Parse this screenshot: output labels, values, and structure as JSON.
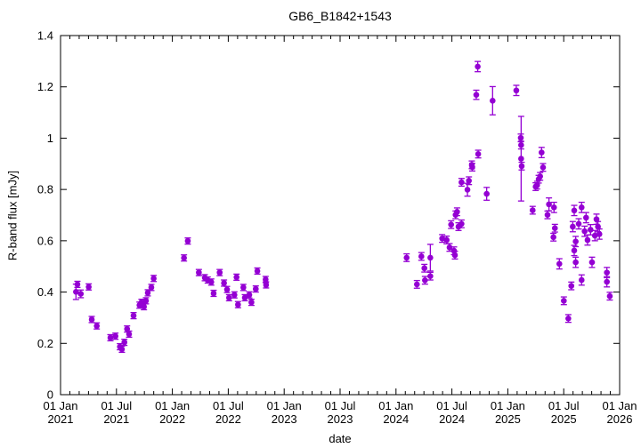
{
  "chart_data": {
    "type": "scatter",
    "title": "GB6_B1842+1543",
    "xlabel": "date",
    "ylabel": "R-band flux [mJy]",
    "legend": "none",
    "grid": false,
    "marker_color": "#9400d3",
    "axis_color": "#000000",
    "background_color": "#ffffff",
    "x_unit": "years since 01 Jan 2021",
    "xlim": [
      0,
      5
    ],
    "ylim": [
      0,
      1.4
    ],
    "x_major_ticks": [
      {
        "t": 0.0,
        "line1": "01 Jan",
        "line2": "2021"
      },
      {
        "t": 0.5,
        "line1": "01 Jul",
        "line2": "2021"
      },
      {
        "t": 1.0,
        "line1": "01 Jan",
        "line2": "2022"
      },
      {
        "t": 1.5,
        "line1": "01 Jul",
        "line2": "2022"
      },
      {
        "t": 2.0,
        "line1": "01 Jan",
        "line2": "2023"
      },
      {
        "t": 2.5,
        "line1": "01 Jul",
        "line2": "2023"
      },
      {
        "t": 3.0,
        "line1": "01 Jan",
        "line2": "2024"
      },
      {
        "t": 3.5,
        "line1": "01 Jul",
        "line2": "2024"
      },
      {
        "t": 4.0,
        "line1": "01 Jan",
        "line2": "2025"
      },
      {
        "t": 4.5,
        "line1": "01 Jul",
        "line2": "2025"
      },
      {
        "t": 5.0,
        "line1": "01 Jan",
        "line2": "2026"
      }
    ],
    "x_minor_tick_step": 0.0833333,
    "y_major_ticks": [
      {
        "v": 0.0,
        "label": "0"
      },
      {
        "v": 0.2,
        "label": "0.2"
      },
      {
        "v": 0.4,
        "label": "0.4"
      },
      {
        "v": 0.6,
        "label": "0.6"
      },
      {
        "v": 0.8,
        "label": "0.8"
      },
      {
        "v": 1.0,
        "label": "1"
      },
      {
        "v": 1.2,
        "label": "1.2"
      },
      {
        "v": 1.4,
        "label": "1.4"
      }
    ],
    "points_format": "[t_years_since_2021, flux_mJy, flux_error_mJy]",
    "points": [
      [
        0.138,
        0.401,
        0.03
      ],
      [
        0.151,
        0.43,
        0.012
      ],
      [
        0.181,
        0.393,
        0.015
      ],
      [
        0.252,
        0.42,
        0.012
      ],
      [
        0.279,
        0.293,
        0.012
      ],
      [
        0.324,
        0.268,
        0.012
      ],
      [
        0.446,
        0.222,
        0.012
      ],
      [
        0.491,
        0.228,
        0.012
      ],
      [
        0.531,
        0.187,
        0.012
      ],
      [
        0.549,
        0.177,
        0.012
      ],
      [
        0.571,
        0.204,
        0.012
      ],
      [
        0.595,
        0.256,
        0.012
      ],
      [
        0.613,
        0.236,
        0.012
      ],
      [
        0.653,
        0.308,
        0.012
      ],
      [
        0.706,
        0.349,
        0.012
      ],
      [
        0.724,
        0.36,
        0.012
      ],
      [
        0.746,
        0.343,
        0.012
      ],
      [
        0.764,
        0.366,
        0.012
      ],
      [
        0.78,
        0.397,
        0.012
      ],
      [
        0.812,
        0.418,
        0.012
      ],
      [
        0.833,
        0.453,
        0.012
      ],
      [
        1.104,
        0.533,
        0.012
      ],
      [
        1.138,
        0.599,
        0.012
      ],
      [
        1.237,
        0.476,
        0.012
      ],
      [
        1.29,
        0.456,
        0.012
      ],
      [
        1.316,
        0.447,
        0.012
      ],
      [
        1.348,
        0.439,
        0.012
      ],
      [
        1.369,
        0.395,
        0.012
      ],
      [
        1.423,
        0.476,
        0.012
      ],
      [
        1.462,
        0.435,
        0.012
      ],
      [
        1.489,
        0.41,
        0.012
      ],
      [
        1.507,
        0.378,
        0.012
      ],
      [
        1.555,
        0.389,
        0.012
      ],
      [
        1.574,
        0.458,
        0.012
      ],
      [
        1.587,
        0.351,
        0.012
      ],
      [
        1.635,
        0.418,
        0.012
      ],
      [
        1.648,
        0.378,
        0.012
      ],
      [
        1.688,
        0.389,
        0.012
      ],
      [
        1.707,
        0.36,
        0.012
      ],
      [
        1.746,
        0.412,
        0.012
      ],
      [
        1.76,
        0.482,
        0.012
      ],
      [
        1.834,
        0.449,
        0.012
      ],
      [
        1.838,
        0.428,
        0.012
      ],
      [
        3.095,
        0.534,
        0.015
      ],
      [
        3.187,
        0.43,
        0.015
      ],
      [
        3.227,
        0.539,
        0.015
      ],
      [
        3.254,
        0.493,
        0.015
      ],
      [
        3.259,
        0.446,
        0.015
      ],
      [
        3.307,
        0.534,
        0.052
      ],
      [
        3.307,
        0.462,
        0.015
      ],
      [
        3.413,
        0.609,
        0.015
      ],
      [
        3.453,
        0.603,
        0.015
      ],
      [
        3.479,
        0.574,
        0.015
      ],
      [
        3.493,
        0.663,
        0.015
      ],
      [
        3.519,
        0.561,
        0.015
      ],
      [
        3.527,
        0.544,
        0.015
      ],
      [
        3.533,
        0.701,
        0.015
      ],
      [
        3.546,
        0.713,
        0.015
      ],
      [
        3.559,
        0.655,
        0.015
      ],
      [
        3.586,
        0.666,
        0.015
      ],
      [
        3.586,
        0.828,
        0.015
      ],
      [
        3.639,
        0.799,
        0.025
      ],
      [
        3.652,
        0.834,
        0.015
      ],
      [
        3.678,
        0.896,
        0.015
      ],
      [
        3.682,
        0.887,
        0.015
      ],
      [
        3.718,
        1.169,
        0.018
      ],
      [
        3.731,
        1.279,
        0.02
      ],
      [
        3.735,
        0.938,
        0.015
      ],
      [
        3.811,
        0.783,
        0.025
      ],
      [
        3.864,
        1.146,
        0.055
      ],
      [
        4.076,
        1.186,
        0.02
      ],
      [
        4.116,
        1.001,
        0.015
      ],
      [
        4.119,
        0.973,
        0.015
      ],
      [
        4.119,
        0.92,
        0.165
      ],
      [
        4.124,
        0.891,
        0.015
      ],
      [
        4.222,
        0.719,
        0.015
      ],
      [
        4.249,
        0.811,
        0.015
      ],
      [
        4.262,
        0.817,
        0.015
      ],
      [
        4.276,
        0.84,
        0.015
      ],
      [
        4.289,
        0.851,
        0.015
      ],
      [
        4.302,
        0.944,
        0.02
      ],
      [
        4.315,
        0.886,
        0.015
      ],
      [
        4.355,
        0.701,
        0.015
      ],
      [
        4.368,
        0.742,
        0.025
      ],
      [
        4.408,
        0.614,
        0.015
      ],
      [
        4.413,
        0.73,
        0.02
      ],
      [
        4.421,
        0.649,
        0.015
      ],
      [
        4.461,
        0.51,
        0.02
      ],
      [
        4.501,
        0.366,
        0.015
      ],
      [
        4.541,
        0.297,
        0.015
      ],
      [
        4.568,
        0.424,
        0.015
      ],
      [
        4.581,
        0.655,
        0.02
      ],
      [
        4.594,
        0.718,
        0.02
      ],
      [
        4.594,
        0.562,
        0.02
      ],
      [
        4.607,
        0.597,
        0.02
      ],
      [
        4.607,
        0.516,
        0.02
      ],
      [
        4.634,
        0.666,
        0.02
      ],
      [
        4.66,
        0.73,
        0.02
      ],
      [
        4.66,
        0.447,
        0.02
      ],
      [
        4.687,
        0.637,
        0.02
      ],
      [
        4.7,
        0.69,
        0.02
      ],
      [
        4.713,
        0.603,
        0.02
      ],
      [
        4.74,
        0.643,
        0.02
      ],
      [
        4.753,
        0.516,
        0.02
      ],
      [
        4.779,
        0.62,
        0.02
      ],
      [
        4.793,
        0.684,
        0.02
      ],
      [
        4.806,
        0.655,
        0.02
      ],
      [
        4.819,
        0.626,
        0.02
      ],
      [
        4.886,
        0.476,
        0.02
      ],
      [
        4.886,
        0.44,
        0.02
      ],
      [
        4.912,
        0.384,
        0.015
      ]
    ]
  }
}
